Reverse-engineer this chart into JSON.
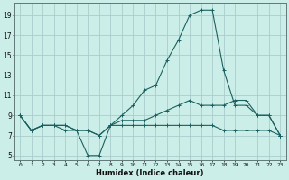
{
  "xlabel": "Humidex (Indice chaleur)",
  "bg_color": "#cceee8",
  "grid_color": "#aacccc",
  "line_color": "#1a6060",
  "xlim": [
    0,
    23
  ],
  "ylim": [
    4.5,
    20.2
  ],
  "xticks": [
    0,
    1,
    2,
    3,
    4,
    5,
    6,
    7,
    8,
    9,
    10,
    11,
    12,
    13,
    14,
    15,
    16,
    17,
    18,
    19,
    20,
    21,
    22,
    23
  ],
  "yticks": [
    5,
    7,
    9,
    11,
    13,
    15,
    17,
    19
  ],
  "line1_y": [
    9,
    7.5,
    8,
    8,
    7.5,
    7.5,
    5,
    5,
    8,
    8,
    8,
    8,
    8,
    8,
    8,
    8,
    8,
    8,
    7.5,
    7.5,
    7.5,
    7.5,
    7.5,
    7
  ],
  "line2_y": [
    9,
    7.5,
    8,
    8,
    8,
    7.5,
    7.5,
    7,
    8,
    9,
    10,
    11.5,
    12,
    14.5,
    16.5,
    19,
    19.5,
    19.5,
    13.5,
    10,
    10,
    9,
    9,
    7
  ],
  "line3_y": [
    9,
    7.5,
    8,
    8,
    8,
    7.5,
    7.5,
    7,
    8,
    8.5,
    8.5,
    8.5,
    9,
    9.5,
    10,
    10.5,
    10,
    10,
    10,
    10.5,
    10.5,
    9,
    9,
    7
  ]
}
